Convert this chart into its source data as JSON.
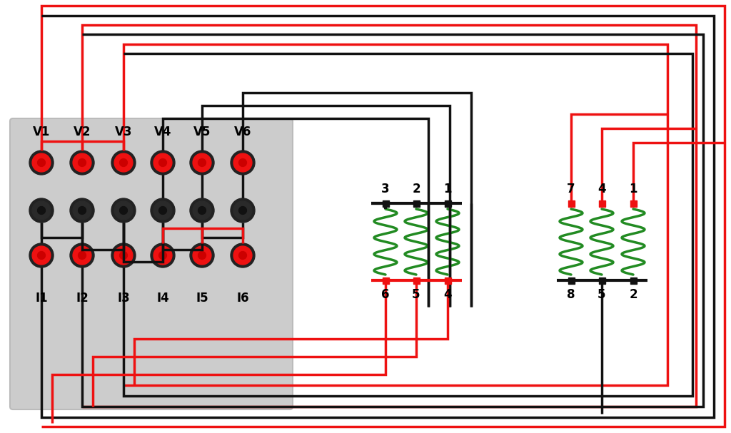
{
  "bg": "#ffffff",
  "red": "#ee1111",
  "black": "#111111",
  "green": "#228B22",
  "panel_color": "#cccccc",
  "v_labels": [
    "V1",
    "V2",
    "V3",
    "V4",
    "V5",
    "V6"
  ],
  "i_labels": [
    "I1",
    "I2",
    "I3",
    "I4",
    "I5",
    "I6"
  ],
  "top_pin_labels_L": [
    "3",
    "2",
    "1"
  ],
  "bot_pin_labels_L": [
    "6",
    "5",
    "4"
  ],
  "top_pin_labels_R": [
    "7",
    "4",
    "1"
  ],
  "bot_pin_labels_R": [
    "8",
    "5",
    "2"
  ],
  "lw_wire": 2.5,
  "lw_bus": 3.0
}
